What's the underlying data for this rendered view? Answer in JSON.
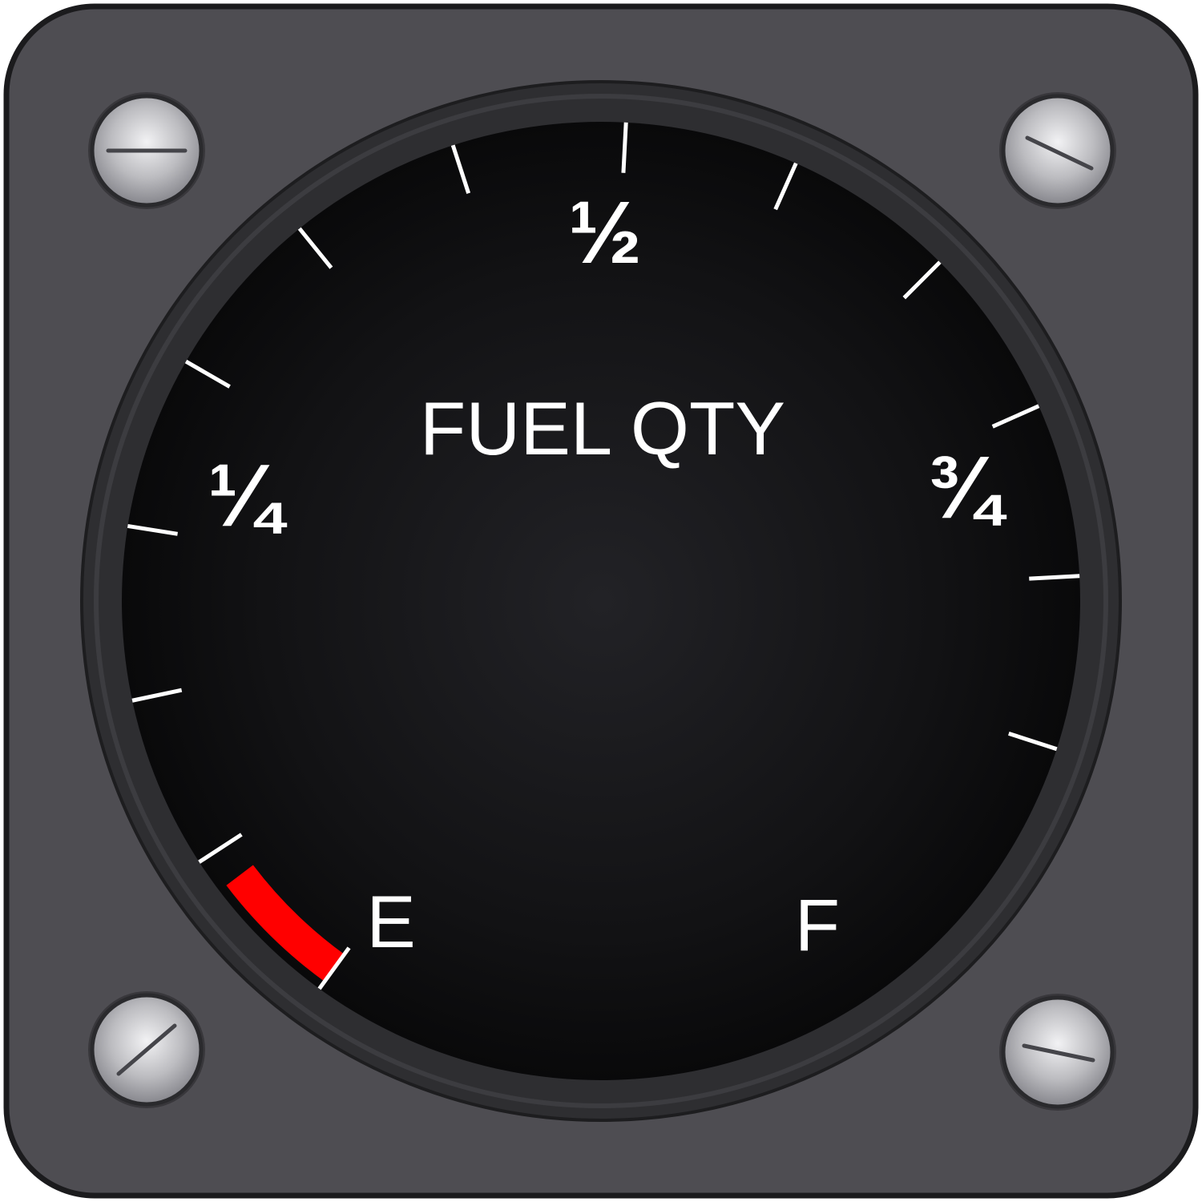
{
  "instrument": {
    "title": "FUEL QTY",
    "scale_labels": {
      "empty": "E",
      "quarter": "¼",
      "half": "½",
      "three_quarter": "¾",
      "full": "F"
    },
    "scale": {
      "min": 0,
      "max": 1,
      "major_ticks": [
        0,
        0.25,
        0.5,
        0.75,
        1
      ],
      "minor_ticks": [
        0.0833,
        0.1667,
        0.3333,
        0.4167,
        0.5833,
        0.6667,
        0.8333,
        0.9167
      ],
      "red_zone": [
        0,
        0.0667
      ]
    },
    "colors": {
      "bezel": "#4e4d52",
      "face": "#0d0d0e",
      "markings": "#ffffff",
      "red_zone": "#ff0000",
      "screw": "#b9b9bd"
    },
    "screws": [
      "screw-icon",
      "screw-icon",
      "screw-icon",
      "screw-icon"
    ]
  }
}
